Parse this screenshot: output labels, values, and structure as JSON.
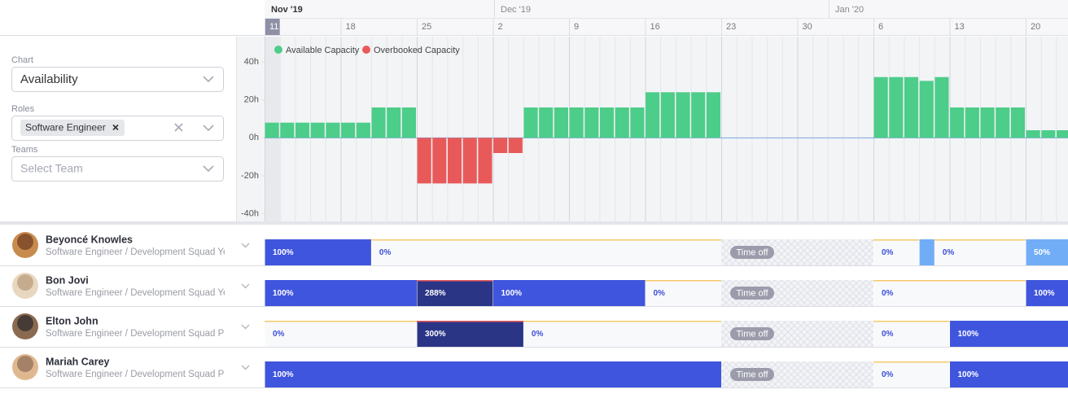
{
  "timeline": {
    "months": [
      "Nov '19",
      "Dec '19",
      "Jan '20"
    ],
    "weeks": [
      "11",
      "18",
      "25",
      "2",
      "9",
      "16",
      "23",
      "30",
      "6",
      "13",
      "20"
    ]
  },
  "filters": {
    "chart_label": "Chart",
    "chart_value": "Availability",
    "roles_label": "Roles",
    "role_chip": "Software Engineer",
    "teams_label": "Teams",
    "teams_placeholder": "Select Team"
  },
  "chart_data": {
    "type": "bar",
    "series": [
      {
        "name": "Available Capacity",
        "color": "#4ccd8a",
        "values": [
          8,
          8,
          8,
          8,
          8,
          8,
          8,
          16,
          16,
          16,
          null,
          null,
          null,
          null,
          null,
          null,
          null,
          16,
          16,
          16,
          16,
          16,
          16,
          16,
          16,
          24,
          24,
          24,
          24,
          24,
          0,
          0,
          0,
          0,
          0,
          0,
          0,
          0,
          0,
          0,
          32,
          32,
          32,
          30,
          32,
          16,
          16,
          16,
          16,
          16,
          4,
          4,
          4
        ]
      },
      {
        "name": "Overbooked Capacity",
        "color": "#e85a5a",
        "values": [
          null,
          null,
          null,
          null,
          null,
          null,
          null,
          null,
          null,
          null,
          -24,
          -24,
          -24,
          -24,
          -24,
          -8,
          -8,
          null,
          null,
          null,
          null,
          null,
          null,
          null,
          null,
          null,
          null,
          null,
          null,
          null,
          null,
          null,
          null,
          null,
          null,
          null,
          null,
          null,
          null,
          null,
          null,
          null,
          null,
          null,
          null,
          null,
          null,
          null,
          null,
          null,
          null,
          null,
          null
        ]
      }
    ],
    "ylim": [
      -44,
      52
    ],
    "yticks": [
      {
        "value": 40,
        "label": "40h"
      },
      {
        "value": 20,
        "label": "20h"
      },
      {
        "value": 0,
        "label": "0h"
      },
      {
        "value": -20,
        "label": "-20h"
      },
      {
        "value": -40,
        "label": "-40h"
      }
    ]
  },
  "rows": [
    {
      "name": "Beyoncé Knowles",
      "role": "Software Engineer / Development Squad Yell",
      "segments": [
        "100%",
        "0%",
        "Time off",
        "0%",
        "0%",
        "50%"
      ]
    },
    {
      "name": "Bon Jovi",
      "role": "Software Engineer / Development Squad Yell",
      "segments": [
        "100%",
        "288%",
        "100%",
        "0%",
        "Time off",
        "0%",
        "100%"
      ]
    },
    {
      "name": "Elton John",
      "role": "Software Engineer / Development Squad Pur",
      "segments": [
        "0%",
        "300%",
        "0%",
        "Time off",
        "0%",
        "100%"
      ]
    },
    {
      "name": "Mariah Carey",
      "role": "Software Engineer / Development Squad Pur",
      "segments": [
        "100%",
        "Time off",
        "0%",
        "100%"
      ]
    }
  ]
}
